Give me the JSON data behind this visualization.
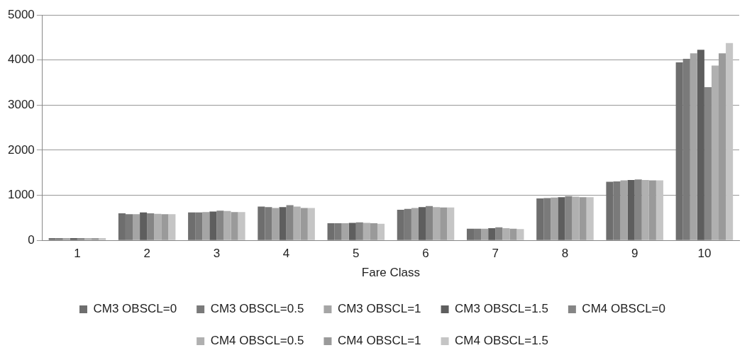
{
  "chart_data": {
    "type": "bar",
    "xlabel": "Fare Class",
    "categories": [
      "1",
      "2",
      "3",
      "4",
      "5",
      "6",
      "7",
      "8",
      "9",
      "10"
    ],
    "series": [
      {
        "name": "CM3 OBSCL=0",
        "color": "#6e6e6e",
        "values": [
          50,
          600,
          620,
          750,
          380,
          680,
          260,
          930,
          1300,
          3950
        ]
      },
      {
        "name": "CM3 OBSCL=0.5",
        "color": "#7a7a7a",
        "values": [
          50,
          580,
          620,
          740,
          380,
          700,
          260,
          940,
          1310,
          4030
        ]
      },
      {
        "name": "CM3 OBSCL=1",
        "color": "#a5a5a5",
        "values": [
          50,
          580,
          630,
          720,
          380,
          720,
          260,
          950,
          1330,
          4150
        ]
      },
      {
        "name": "CM3 OBSCL=1.5",
        "color": "#5e5e5e",
        "values": [
          50,
          620,
          640,
          740,
          390,
          740,
          270,
          960,
          1340,
          4230
        ]
      },
      {
        "name": "CM4 OBSCL=0",
        "color": "#858585",
        "values": [
          50,
          600,
          660,
          780,
          400,
          760,
          290,
          980,
          1350,
          3400
        ]
      },
      {
        "name": "CM4 OBSCL=0.5",
        "color": "#b0b0b0",
        "values": [
          50,
          590,
          650,
          750,
          390,
          740,
          270,
          970,
          1340,
          3880
        ]
      },
      {
        "name": "CM4 OBSCL=1",
        "color": "#9a9a9a",
        "values": [
          50,
          580,
          630,
          720,
          380,
          730,
          260,
          960,
          1330,
          4150
        ]
      },
      {
        "name": "CM4 OBSCL=1.5",
        "color": "#c5c5c5",
        "values": [
          50,
          580,
          630,
          720,
          370,
          730,
          250,
          960,
          1330,
          4380
        ]
      }
    ],
    "ylim": [
      0,
      5000
    ],
    "yticks": [
      0,
      1000,
      2000,
      3000,
      4000,
      5000
    ],
    "grid": "y",
    "legend": "bottom"
  }
}
